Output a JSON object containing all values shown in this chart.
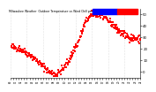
{
  "bg_color": "#ffffff",
  "plot_bg_color": "#ffffff",
  "grid_color": "#c8c8c8",
  "dot_color": "#ff0000",
  "legend_blue_color": "#0000ff",
  "legend_red_color": "#ff0000",
  "ylim": [
    -5,
    55
  ],
  "yticks": [
    0,
    10,
    20,
    30,
    40,
    50
  ],
  "num_points": 288,
  "knots_x": [
    0,
    0.08,
    0.16,
    0.24,
    0.3,
    0.36,
    0.44,
    0.52,
    0.58,
    0.63,
    0.68,
    0.76,
    0.85,
    0.92,
    1.0
  ],
  "knots_y": [
    22,
    20,
    14,
    6,
    0,
    -2,
    8,
    26,
    44,
    50,
    50,
    44,
    34,
    30,
    28
  ],
  "noise_std": 1.5,
  "title_fontsize": 2.3,
  "tick_fontsize": 2.8,
  "xtick_fontsize": 2.0,
  "dot_size": 0.6,
  "num_vgrid": 9
}
